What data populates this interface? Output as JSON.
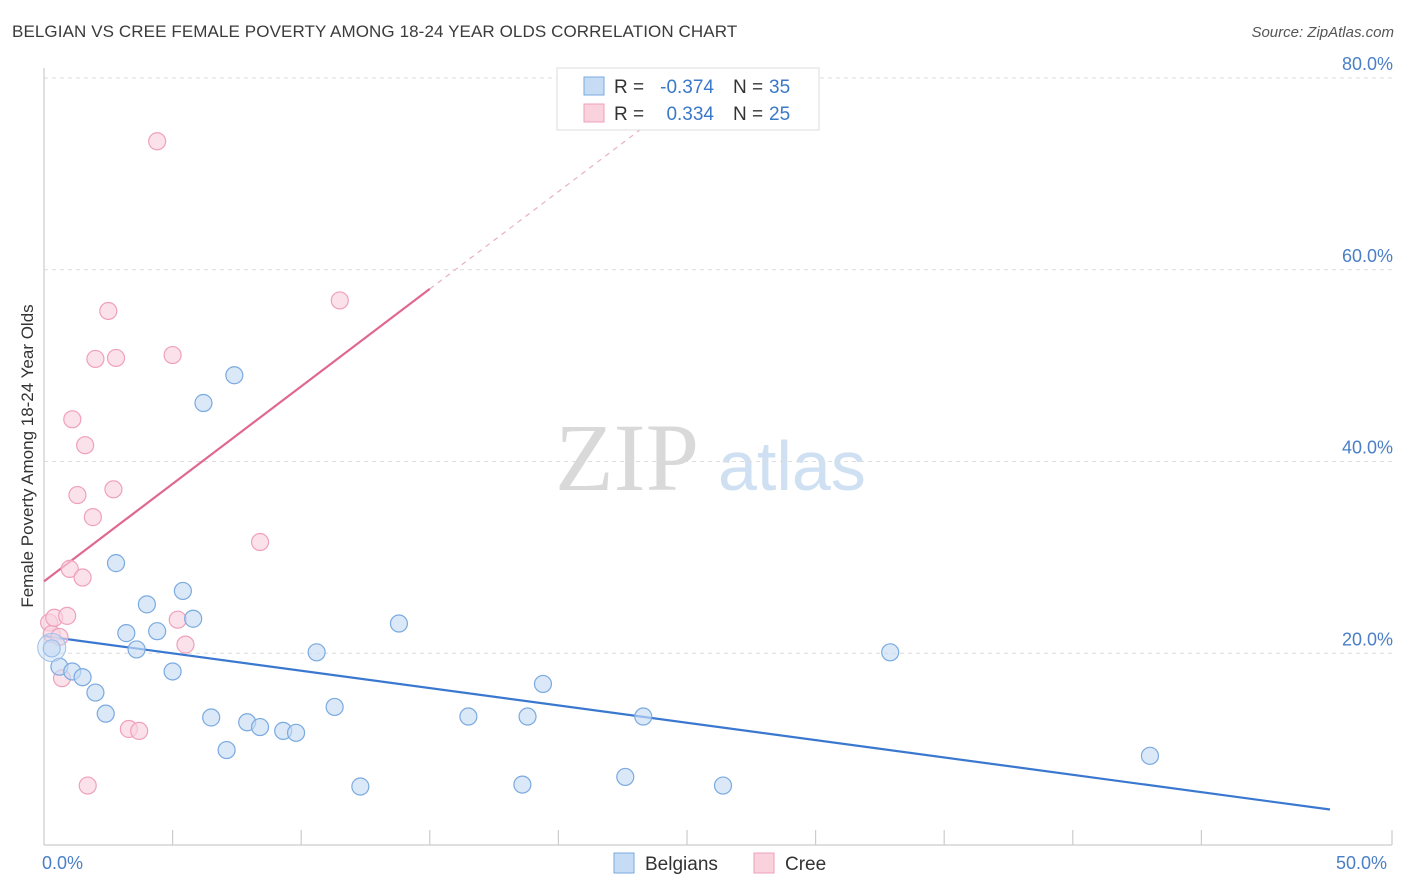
{
  "title": "BELGIAN VS CREE FEMALE POVERTY AMONG 18-24 YEAR OLDS CORRELATION CHART",
  "source": "Source: ZipAtlas.com",
  "watermark": {
    "zip": "ZIP",
    "atlas": "atlas"
  },
  "chart_data": {
    "type": "scatter",
    "ylabel": "Female Poverty Among 18-24 Year Olds",
    "xlabel": "",
    "xlim": [
      0,
      50
    ],
    "ylim": [
      0,
      80
    ],
    "x_tick_labels": {
      "min": "0.0%",
      "max": "50.0%"
    },
    "y_ticks": [
      20,
      40,
      60,
      80
    ],
    "y_tick_labels": [
      "20.0%",
      "40.0%",
      "60.0%",
      "80.0%"
    ],
    "legend": {
      "rows": [
        {
          "r_label": "R =",
          "r_value": "-0.374",
          "n_label": "N =",
          "n_value": "35"
        },
        {
          "r_label": "R =",
          "r_value": "0.334",
          "n_label": "N =",
          "n_value": "25"
        }
      ]
    },
    "series": [
      {
        "name": "Belgians",
        "color": "#7aaae0",
        "fill": "#c6dcf5",
        "trend": {
          "x0": 0,
          "y0": 21.8,
          "x1": 50,
          "y1": 3.7,
          "color": "#3a78d0"
        },
        "points": [
          [
            0.3,
            20.5
          ],
          [
            0.6,
            18.6
          ],
          [
            1.1,
            18.1
          ],
          [
            1.5,
            17.5
          ],
          [
            2.0,
            15.9
          ],
          [
            2.4,
            13.7
          ],
          [
            2.8,
            29.4
          ],
          [
            3.2,
            22.1
          ],
          [
            3.6,
            20.4
          ],
          [
            4.0,
            25.1
          ],
          [
            4.4,
            22.3
          ],
          [
            5.0,
            18.1
          ],
          [
            5.4,
            26.5
          ],
          [
            5.8,
            23.6
          ],
          [
            6.2,
            46.1
          ],
          [
            6.5,
            13.3
          ],
          [
            7.1,
            9.9
          ],
          [
            7.4,
            49.0
          ],
          [
            7.9,
            12.8
          ],
          [
            8.4,
            12.3
          ],
          [
            9.3,
            11.9
          ],
          [
            9.8,
            11.7
          ],
          [
            10.6,
            20.1
          ],
          [
            11.3,
            14.4
          ],
          [
            12.3,
            6.1
          ],
          [
            13.8,
            23.1
          ],
          [
            16.5,
            13.4
          ],
          [
            18.6,
            6.3
          ],
          [
            18.8,
            13.4
          ],
          [
            19.4,
            16.8
          ],
          [
            22.6,
            7.1
          ],
          [
            23.3,
            13.4
          ],
          [
            26.4,
            6.2
          ],
          [
            32.9,
            20.1
          ],
          [
            43.0,
            9.3
          ]
        ]
      },
      {
        "name": "Cree",
        "color": "#f0a0ba",
        "fill": "#f9d2de",
        "trend": {
          "x0": 0,
          "y0": 27.5,
          "x1": 15.0,
          "y1": 58.0,
          "color": "#e06890",
          "dash_to_x": 25.0,
          "dash_to_y": 78.3
        },
        "points": [
          [
            0.2,
            23.2
          ],
          [
            0.3,
            22.0
          ],
          [
            0.4,
            23.7
          ],
          [
            0.6,
            21.7
          ],
          [
            0.7,
            17.4
          ],
          [
            0.9,
            23.9
          ],
          [
            1.0,
            28.8
          ],
          [
            1.1,
            44.4
          ],
          [
            1.3,
            36.5
          ],
          [
            1.5,
            27.9
          ],
          [
            1.6,
            41.7
          ],
          [
            1.7,
            6.2
          ],
          [
            1.9,
            34.2
          ],
          [
            2.0,
            50.7
          ],
          [
            2.5,
            55.7
          ],
          [
            2.7,
            37.1
          ],
          [
            2.8,
            50.8
          ],
          [
            3.3,
            12.1
          ],
          [
            3.7,
            11.9
          ],
          [
            4.4,
            73.4
          ],
          [
            5.0,
            51.1
          ],
          [
            5.2,
            23.5
          ],
          [
            5.5,
            20.9
          ],
          [
            8.4,
            31.6
          ],
          [
            11.5,
            56.8
          ]
        ]
      }
    ]
  }
}
